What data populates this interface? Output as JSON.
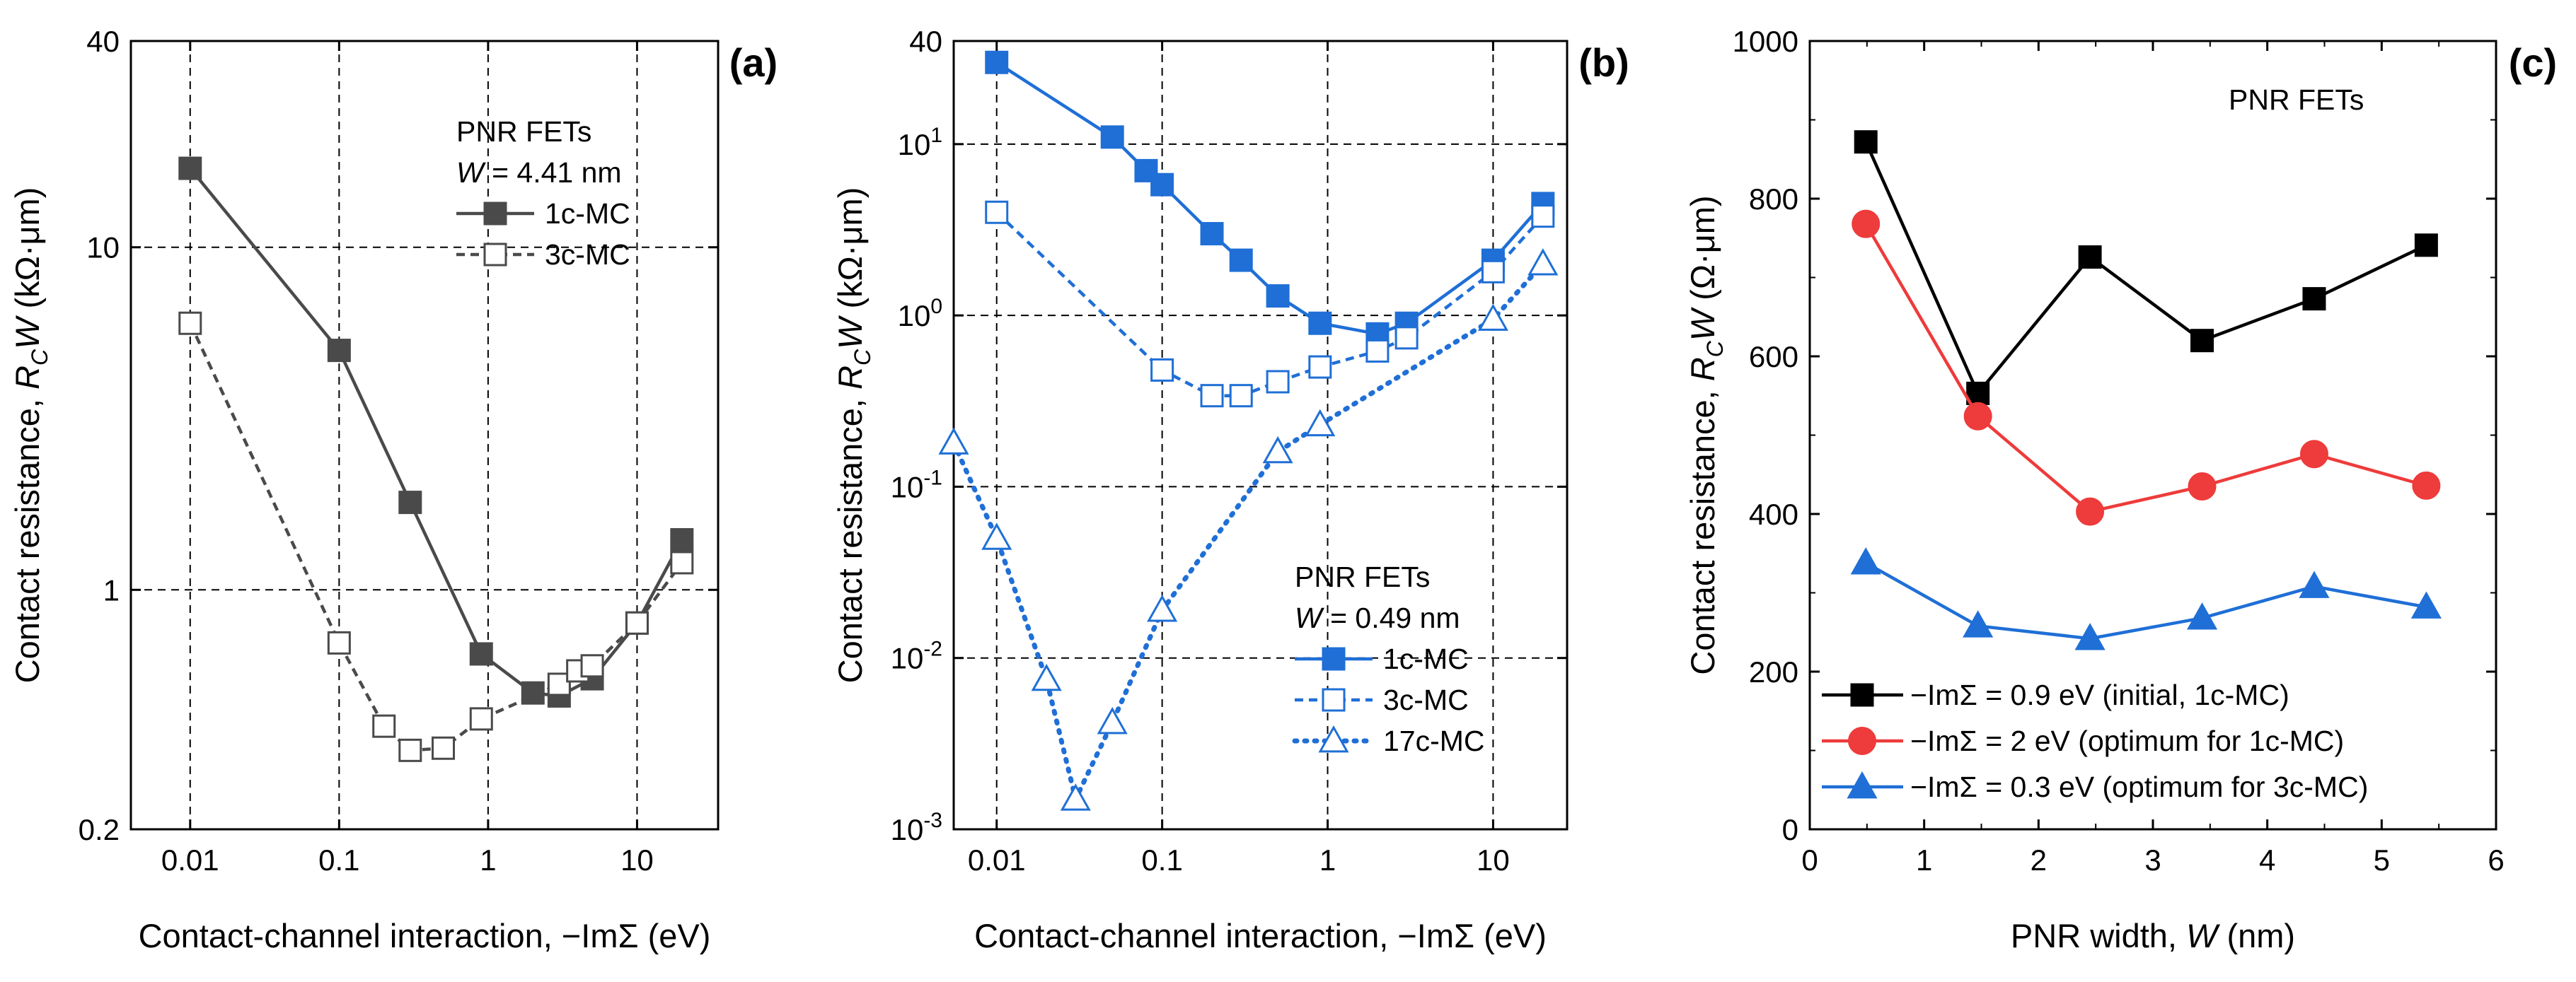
{
  "chart_data": [
    {
      "panel": "(a)",
      "type": "line",
      "xscale": "log",
      "yscale": "log",
      "xlim": [
        0.004,
        35
      ],
      "ylim": [
        0.2,
        40
      ],
      "grid": true,
      "xlabel": "Contact-channel interaction, −ImΣ  (eV)",
      "ylabel_prefix": "Contact resistance, ",
      "ylabel_var": "R",
      "ylabel_sub": "C",
      "ylabel_var2": "W",
      "ylabel_unit": "  (kΩ·μm)",
      "xticks": [
        0.01,
        0.1,
        1,
        10
      ],
      "xtick_labels": [
        "0.01",
        "0.1",
        "1",
        "10"
      ],
      "yticks": [
        0.2,
        1,
        10,
        40
      ],
      "ytick_labels": [
        "0.2",
        "1",
        "10",
        "40"
      ],
      "legend_title": "PNR FETs",
      "legend_subtitle_var": "W",
      "legend_subtitle_rest": " = 4.41 nm",
      "series": [
        {
          "name": "1c-MC",
          "color": "#4a4a4a",
          "style": "solid",
          "marker": "square-filled",
          "x": [
            0.01,
            0.1,
            0.3,
            0.9,
            2,
            3,
            5,
            10,
            20
          ],
          "y": [
            17,
            5,
            1.8,
            0.65,
            0.5,
            0.49,
            0.55,
            0.8,
            1.4
          ]
        },
        {
          "name": "3c-MC",
          "color": "#4a4a4a",
          "style": "dash",
          "marker": "square-open",
          "x": [
            0.01,
            0.1,
            0.2,
            0.3,
            0.5,
            0.9,
            3,
            4,
            5,
            10,
            20
          ],
          "y": [
            6,
            0.7,
            0.4,
            0.34,
            0.345,
            0.42,
            0.53,
            0.58,
            0.6,
            0.8,
            1.2
          ]
        }
      ]
    },
    {
      "panel": "(b)",
      "type": "line",
      "xscale": "log",
      "yscale": "log",
      "xlim": [
        0.0055,
        28
      ],
      "ylim": [
        0.001,
        40
      ],
      "grid": true,
      "xlabel": "Contact-channel interaction, −ImΣ  (eV)",
      "ylabel_prefix": "Contact resistance, ",
      "ylabel_var": "R",
      "ylabel_sub": "C",
      "ylabel_var2": "W",
      "ylabel_unit": "  (kΩ·μm)",
      "xticks": [
        0.01,
        0.1,
        1,
        10
      ],
      "xtick_labels": [
        "0.01",
        "0.1",
        "1",
        "10"
      ],
      "yticks": [
        0.001,
        0.01,
        0.1,
        1,
        10,
        40
      ],
      "ytick_labels": [
        [
          "10",
          "-3"
        ],
        [
          "10",
          "-2"
        ],
        [
          "10",
          "-1"
        ],
        [
          "10",
          "0"
        ],
        [
          "10",
          "1"
        ],
        [
          "40",
          ""
        ]
      ],
      "legend_title": "PNR FETs",
      "legend_subtitle_var": "W",
      "legend_subtitle_rest": " = 0.49 nm",
      "series": [
        {
          "name": "1c-MC",
          "color": "#1f6fd6",
          "style": "solid",
          "marker": "square-filled",
          "x": [
            0.01,
            0.05,
            0.08,
            0.1,
            0.2,
            0.3,
            0.5,
            0.9,
            2,
            3,
            10,
            20
          ],
          "y": [
            30,
            11,
            7,
            5.8,
            3,
            2.1,
            1.3,
            0.9,
            0.78,
            0.9,
            2.1,
            4.5
          ]
        },
        {
          "name": "3c-MC",
          "color": "#1f6fd6",
          "style": "dash",
          "marker": "square-open",
          "x": [
            0.01,
            0.1,
            0.2,
            0.3,
            0.5,
            0.9,
            2,
            3,
            10,
            20
          ],
          "y": [
            4,
            0.48,
            0.34,
            0.34,
            0.41,
            0.5,
            0.62,
            0.74,
            1.8,
            3.8
          ]
        },
        {
          "name": "17c-MC",
          "color": "#1f6fd6",
          "style": "dot",
          "marker": "triangle-open",
          "x": [
            0.0055,
            0.01,
            0.02,
            0.03,
            0.05,
            0.1,
            0.5,
            0.9,
            10,
            20
          ],
          "y": [
            0.18,
            0.05,
            0.0075,
            0.0015,
            0.0042,
            0.019,
            0.16,
            0.23,
            0.95,
            2.0
          ]
        }
      ]
    },
    {
      "panel": "(c)",
      "type": "line",
      "xscale": "linear",
      "yscale": "linear",
      "xlim": [
        0,
        6
      ],
      "ylim": [
        0,
        1000
      ],
      "grid": false,
      "xlabel_prefix": "PNR width, ",
      "xlabel_var": "W",
      "xlabel_unit": "  (nm)",
      "ylabel_prefix": "Contact resistance, ",
      "ylabel_var": "R",
      "ylabel_sub": "C",
      "ylabel_var2": "W",
      "ylabel_unit": "  (Ω·μm)",
      "xticks": [
        0,
        1,
        2,
        3,
        4,
        5,
        6
      ],
      "xtick_labels": [
        "0",
        "1",
        "2",
        "3",
        "4",
        "5",
        "6"
      ],
      "yticks": [
        0,
        200,
        400,
        600,
        800,
        1000
      ],
      "ytick_labels": [
        "0",
        "200",
        "400",
        "600",
        "800",
        "1000"
      ],
      "annotation": "PNR FETs",
      "series": [
        {
          "name": "−ImΣ = 0.9 eV (initial, 1c-MC)",
          "color": "#000000",
          "style": "solid",
          "marker": "square-filled",
          "x": [
            0.49,
            1.47,
            2.45,
            3.43,
            4.41,
            5.39
          ],
          "y": [
            872,
            553,
            726,
            620,
            673,
            741
          ]
        },
        {
          "name": "−ImΣ = 2 eV (optimum for 1c-MC)",
          "color": "#ee3b3b",
          "style": "solid",
          "marker": "circle-filled",
          "x": [
            0.49,
            1.47,
            2.45,
            3.43,
            4.41,
            5.39
          ],
          "y": [
            768,
            524,
            403,
            435,
            476,
            436
          ]
        },
        {
          "name": "−ImΣ = 0.3 eV (optimum for 3c-MC)",
          "color": "#1f6fd6",
          "style": "solid",
          "marker": "triangle-filled",
          "x": [
            0.49,
            1.47,
            2.45,
            3.43,
            4.41,
            5.39
          ],
          "y": [
            338,
            258,
            242,
            268,
            308,
            282
          ]
        }
      ]
    }
  ]
}
